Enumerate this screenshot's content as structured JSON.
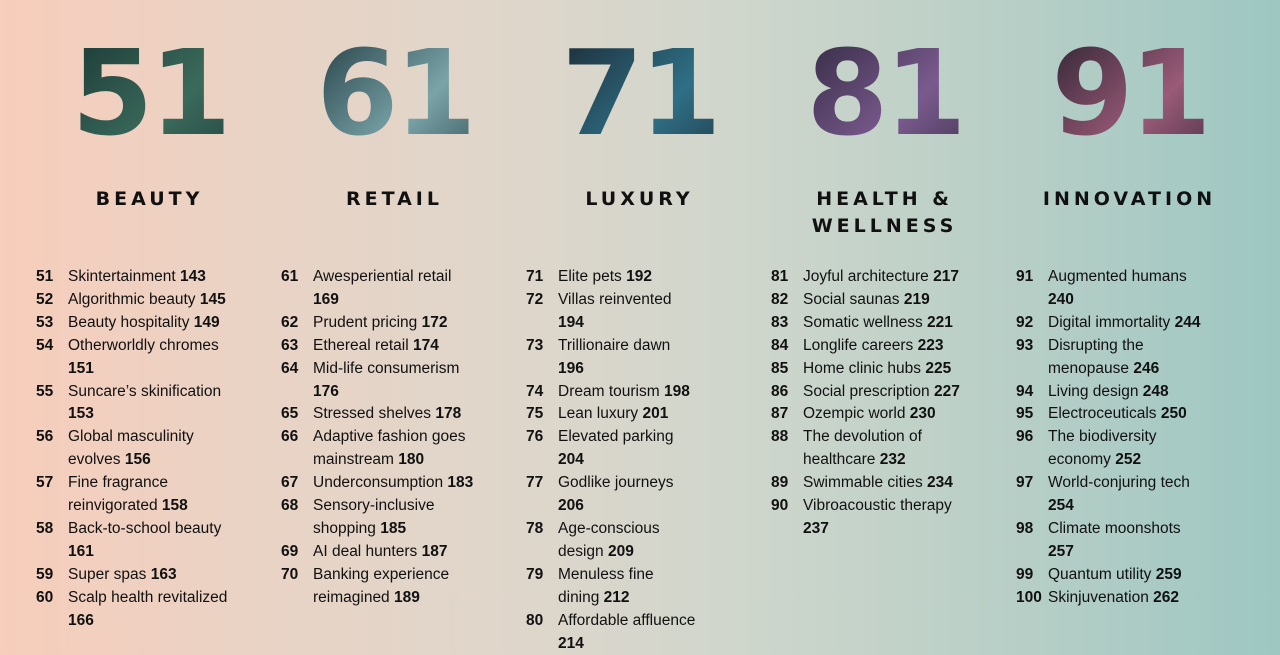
{
  "sections": [
    {
      "number": "51",
      "heading": "BEAUTY",
      "color_a": "#1f3f3a",
      "color_b": "#3b6a5c",
      "items": [
        {
          "num": "51",
          "title": "Skintertainment",
          "page": "143"
        },
        {
          "num": "52",
          "title": "Algorithmic beauty",
          "page": "145"
        },
        {
          "num": "53",
          "title": "Beauty hospitality",
          "page": "149"
        },
        {
          "num": "54",
          "title": "Otherworldly chromes",
          "page": "151"
        },
        {
          "num": "55",
          "title": "Suncare’s skinification",
          "page": "153"
        },
        {
          "num": "56",
          "title": "Global masculinity evolves",
          "page": "156"
        },
        {
          "num": "57",
          "title": "Fine fragrance reinvigorated",
          "page": "158"
        },
        {
          "num": "58",
          "title": "Back-to-school beauty",
          "page": "161"
        },
        {
          "num": "59",
          "title": "Super spas",
          "page": "163"
        },
        {
          "num": "60",
          "title": "Scalp health revitalized",
          "page": "166"
        }
      ]
    },
    {
      "number": "61",
      "heading": "RETAIL",
      "color_a": "#2c4a50",
      "color_b": "#7aa3a8",
      "items": [
        {
          "num": "61",
          "title": "Awesperiential retail",
          "page": "169"
        },
        {
          "num": "62",
          "title": "Prudent pricing",
          "page": "172"
        },
        {
          "num": "63",
          "title": "Ethereal retail",
          "page": "174"
        },
        {
          "num": "64",
          "title": "Mid-life consumerism",
          "page": "176"
        },
        {
          "num": "65",
          "title": "Stressed shelves",
          "page": "178"
        },
        {
          "num": "66",
          "title": "Adaptive fashion goes mainstream",
          "page": "180"
        },
        {
          "num": "67",
          "title": "Underconsumption",
          "page": "183"
        },
        {
          "num": "68",
          "title": "Sensory-inclusive shopping",
          "page": "185"
        },
        {
          "num": "69",
          "title": "AI deal hunters",
          "page": "187"
        },
        {
          "num": "70",
          "title": "Banking experience reimagined",
          "page": "189"
        }
      ]
    },
    {
      "number": "71",
      "heading": "LUXURY",
      "color_a": "#1f3340",
      "color_b": "#2f6f86",
      "items": [
        {
          "num": "71",
          "title": "Elite pets",
          "page": "192"
        },
        {
          "num": "72",
          "title": "Villas reinvented",
          "page": "194"
        },
        {
          "num": "73",
          "title": "Trillionaire dawn",
          "page": "196"
        },
        {
          "num": "74",
          "title": "Dream tourism",
          "page": "198"
        },
        {
          "num": "75",
          "title": "Lean luxury",
          "page": "201"
        },
        {
          "num": "76",
          "title": "Elevated parking",
          "page": "204"
        },
        {
          "num": "77",
          "title": "Godlike journeys",
          "page": "206"
        },
        {
          "num": "78",
          "title": "Age-conscious design",
          "page": "209"
        },
        {
          "num": "79",
          "title": "Menuless fine dining",
          "page": "212"
        },
        {
          "num": "80",
          "title": "Affordable affluence",
          "page": "214"
        }
      ]
    },
    {
      "number": "81",
      "heading": "HEALTH & WELLNESS",
      "color_a": "#3a2f4a",
      "color_b": "#7a5a8e",
      "items": [
        {
          "num": "81",
          "title": "Joyful architecture",
          "page": "217"
        },
        {
          "num": "82",
          "title": "Social saunas",
          "page": "219"
        },
        {
          "num": "83",
          "title": "Somatic wellness",
          "page": "221"
        },
        {
          "num": "84",
          "title": "Longlife careers",
          "page": "223"
        },
        {
          "num": "85",
          "title": "Home clinic hubs",
          "page": "225"
        },
        {
          "num": "86",
          "title": "Social prescription",
          "page": "227"
        },
        {
          "num": "87",
          "title": "Ozempic world",
          "page": "230"
        },
        {
          "num": "88",
          "title": "The devolution of healthcare",
          "page": "232"
        },
        {
          "num": "89",
          "title": "Swimmable cities",
          "page": "234"
        },
        {
          "num": "90",
          "title": "Vibroacoustic therapy",
          "page": "237"
        }
      ]
    },
    {
      "number": "91",
      "heading": "INNOVATION",
      "color_a": "#3a2a3a",
      "color_b": "#9a5a78",
      "items": [
        {
          "num": "91",
          "title": "Augmented humans",
          "page": "240"
        },
        {
          "num": "92",
          "title": "Digital immortality",
          "page": "244"
        },
        {
          "num": "93",
          "title": "Disrupting the menopause",
          "page": "246"
        },
        {
          "num": "94",
          "title": "Living design",
          "page": "248"
        },
        {
          "num": "95",
          "title": "Electroceuticals",
          "page": "250"
        },
        {
          "num": "96",
          "title": "The biodiversity economy",
          "page": "252"
        },
        {
          "num": "97",
          "title": "World-conjuring tech",
          "page": "254"
        },
        {
          "num": "98",
          "title": "Climate moonshots",
          "page": "257"
        },
        {
          "num": "99",
          "title": "Quantum utility",
          "page": "259"
        },
        {
          "num": "100",
          "title": "Skinjuvenation",
          "page": "262"
        }
      ]
    }
  ]
}
